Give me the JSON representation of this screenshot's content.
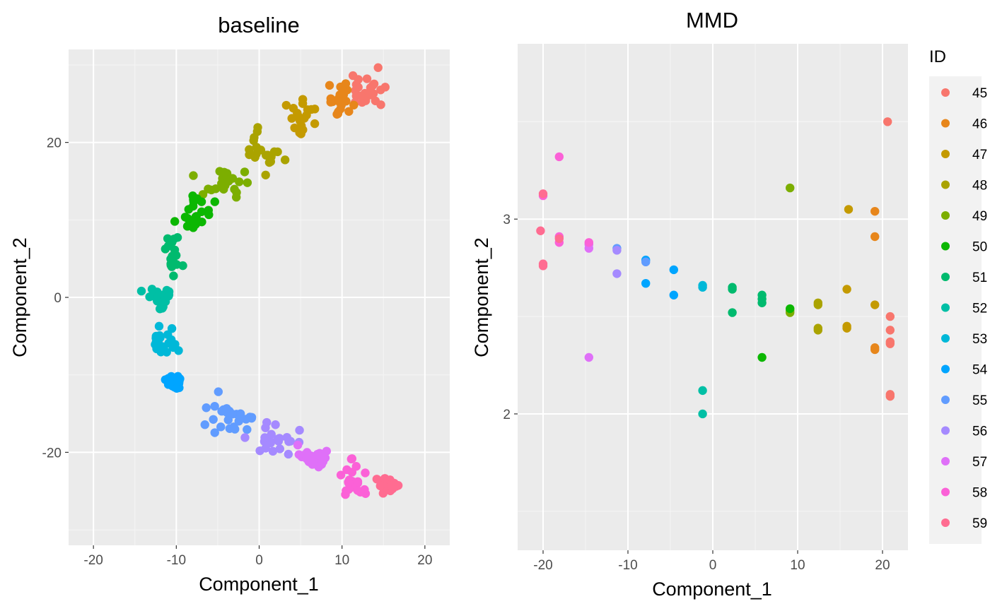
{
  "chart_data": [
    {
      "type": "scatter",
      "title": "baseline",
      "xlabel": "Component_1",
      "ylabel": "Component_2",
      "xlim": [
        -23,
        23
      ],
      "ylim": [
        -32,
        32
      ],
      "x_ticks": [
        -20,
        -10,
        0,
        10,
        20
      ],
      "y_ticks": [
        -20,
        0,
        20
      ],
      "clusters": [
        {
          "id": "45",
          "cx": 12.8,
          "cy": 26.5,
          "sx": 1.0,
          "sy": 1.3,
          "n": 24
        },
        {
          "id": "46",
          "cx": 9.8,
          "cy": 25.5,
          "sx": 1.1,
          "sy": 1.3,
          "n": 22
        },
        {
          "id": "47",
          "cx": 5.0,
          "cy": 23.0,
          "sx": 1.1,
          "sy": 1.4,
          "n": 20
        },
        {
          "id": "48",
          "cx": 0.3,
          "cy": 19.0,
          "sx": 1.2,
          "sy": 1.5,
          "n": 20
        },
        {
          "id": "49",
          "cx": -3.5,
          "cy": 15.0,
          "sx": 1.7,
          "sy": 0.8,
          "n": 22
        },
        {
          "id": "50",
          "cx": -8.0,
          "cy": 10.8,
          "sx": 0.9,
          "sy": 1.2,
          "n": 24
        },
        {
          "id": "51",
          "cx": -10.6,
          "cy": 5.5,
          "sx": 0.6,
          "sy": 1.2,
          "n": 18
        },
        {
          "id": "52",
          "cx": -12.0,
          "cy": 0.0,
          "sx": 0.9,
          "sy": 0.6,
          "n": 22
        },
        {
          "id": "53",
          "cx": -11.5,
          "cy": -5.8,
          "sx": 0.9,
          "sy": 0.9,
          "n": 22
        },
        {
          "id": "54",
          "cx": -10.3,
          "cy": -10.8,
          "sx": 0.6,
          "sy": 0.5,
          "n": 22
        },
        {
          "id": "55",
          "cx": -3.3,
          "cy": -15.5,
          "sx": 1.5,
          "sy": 1.2,
          "n": 26
        },
        {
          "id": "56",
          "cx": 1.8,
          "cy": -18.5,
          "sx": 1.4,
          "sy": 0.9,
          "n": 22
        },
        {
          "id": "57",
          "cx": 6.6,
          "cy": -20.6,
          "sx": 0.9,
          "sy": 0.8,
          "n": 24
        },
        {
          "id": "58",
          "cx": 11.0,
          "cy": -24.0,
          "sx": 1.2,
          "sy": 1.2,
          "n": 22
        },
        {
          "id": "59",
          "cx": 15.5,
          "cy": -24.3,
          "sx": 0.5,
          "sy": 0.5,
          "n": 26
        }
      ]
    },
    {
      "type": "scatter",
      "title": "MMD",
      "xlabel": "Component_1",
      "ylabel": "Component_2",
      "xlim": [
        -23,
        23
      ],
      "ylim": [
        1.3,
        3.9
      ],
      "x_ticks": [
        -20,
        -10,
        0,
        10,
        20
      ],
      "y_ticks": [
        2,
        3
      ],
      "points": [
        {
          "id": "45",
          "x": 20.6,
          "y": 3.5
        },
        {
          "id": "45",
          "x": 20.9,
          "y": 2.5
        },
        {
          "id": "45",
          "x": 20.9,
          "y": 2.43
        },
        {
          "id": "45",
          "x": 20.9,
          "y": 2.37
        },
        {
          "id": "45",
          "x": 20.9,
          "y": 2.36
        },
        {
          "id": "45",
          "x": 20.9,
          "y": 2.1
        },
        {
          "id": "45",
          "x": 20.9,
          "y": 2.09
        },
        {
          "id": "46",
          "x": 19.1,
          "y": 3.04
        },
        {
          "id": "46",
          "x": 19.1,
          "y": 2.91
        },
        {
          "id": "46",
          "x": 19.1,
          "y": 2.33
        },
        {
          "id": "46",
          "x": 19.1,
          "y": 2.34
        },
        {
          "id": "47",
          "x": 16.0,
          "y": 3.05
        },
        {
          "id": "47",
          "x": 15.8,
          "y": 2.64
        },
        {
          "id": "47",
          "x": 19.1,
          "y": 2.56
        },
        {
          "id": "47",
          "x": 15.8,
          "y": 2.44
        },
        {
          "id": "47",
          "x": 15.8,
          "y": 2.45
        },
        {
          "id": "48",
          "x": 12.4,
          "y": 2.56
        },
        {
          "id": "48",
          "x": 12.4,
          "y": 2.57
        },
        {
          "id": "48",
          "x": 12.4,
          "y": 2.43
        },
        {
          "id": "48",
          "x": 12.4,
          "y": 2.44
        },
        {
          "id": "49",
          "x": 9.1,
          "y": 3.16
        },
        {
          "id": "49",
          "x": 9.1,
          "y": 2.53
        },
        {
          "id": "49",
          "x": 9.1,
          "y": 2.52
        },
        {
          "id": "50",
          "x": 5.8,
          "y": 2.29
        },
        {
          "id": "50",
          "x": 9.1,
          "y": 2.54
        },
        {
          "id": "51",
          "x": 2.3,
          "y": 2.65
        },
        {
          "id": "51",
          "x": 2.3,
          "y": 2.64
        },
        {
          "id": "51",
          "x": 2.3,
          "y": 2.52
        },
        {
          "id": "51",
          "x": 5.8,
          "y": 2.61
        },
        {
          "id": "51",
          "x": 5.8,
          "y": 2.59
        },
        {
          "id": "51",
          "x": 5.8,
          "y": 2.57
        },
        {
          "id": "52",
          "x": -1.2,
          "y": 2.12
        },
        {
          "id": "52",
          "x": -1.2,
          "y": 2.0
        },
        {
          "id": "53",
          "x": -1.2,
          "y": 2.66
        },
        {
          "id": "53",
          "x": -1.2,
          "y": 2.65
        },
        {
          "id": "54",
          "x": -4.6,
          "y": 2.74
        },
        {
          "id": "54",
          "x": -4.6,
          "y": 2.61
        },
        {
          "id": "54",
          "x": -7.9,
          "y": 2.79
        },
        {
          "id": "54",
          "x": -7.9,
          "y": 2.67
        },
        {
          "id": "55",
          "x": -11.3,
          "y": 2.85
        },
        {
          "id": "55",
          "x": -7.9,
          "y": 2.78
        },
        {
          "id": "56",
          "x": -11.3,
          "y": 2.72
        },
        {
          "id": "56",
          "x": -11.3,
          "y": 2.84
        },
        {
          "id": "57",
          "x": -14.6,
          "y": 2.29
        },
        {
          "id": "57",
          "x": -14.6,
          "y": 2.85
        },
        {
          "id": "57",
          "x": -14.6,
          "y": 2.87
        },
        {
          "id": "58",
          "x": -18.1,
          "y": 3.32
        },
        {
          "id": "58",
          "x": -14.6,
          "y": 2.88
        },
        {
          "id": "58",
          "x": -18.1,
          "y": 2.91
        },
        {
          "id": "58",
          "x": -18.1,
          "y": 2.88
        },
        {
          "id": "58",
          "x": -20.0,
          "y": 3.12
        },
        {
          "id": "59",
          "x": -20.0,
          "y": 3.13
        },
        {
          "id": "59",
          "x": -20.3,
          "y": 2.94
        },
        {
          "id": "59",
          "x": -20.0,
          "y": 2.77
        },
        {
          "id": "59",
          "x": -20.0,
          "y": 2.76
        },
        {
          "id": "59",
          "x": -18.1,
          "y": 2.9
        }
      ]
    }
  ],
  "legend": {
    "title": "ID",
    "items": [
      {
        "id": "45",
        "color": "#F8766D"
      },
      {
        "id": "46",
        "color": "#E7861B"
      },
      {
        "id": "47",
        "color": "#C49A00"
      },
      {
        "id": "48",
        "color": "#AAA300"
      },
      {
        "id": "49",
        "color": "#7CAE00"
      },
      {
        "id": "50",
        "color": "#0CB702"
      },
      {
        "id": "51",
        "color": "#00BA6E"
      },
      {
        "id": "52",
        "color": "#00BFA5"
      },
      {
        "id": "53",
        "color": "#00B8D8"
      },
      {
        "id": "54",
        "color": "#00A5FF"
      },
      {
        "id": "55",
        "color": "#619CFF"
      },
      {
        "id": "56",
        "color": "#A58AFF"
      },
      {
        "id": "57",
        "color": "#DF70F8"
      },
      {
        "id": "58",
        "color": "#FB61D7"
      },
      {
        "id": "59",
        "color": "#FF6C91"
      }
    ]
  }
}
